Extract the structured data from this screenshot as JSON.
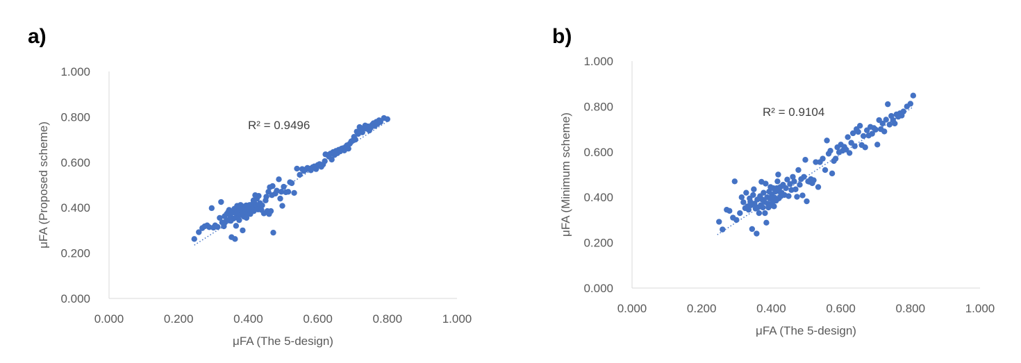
{
  "panels": [
    {
      "label": "a)",
      "chart_data": {
        "type": "scatter",
        "xlabel": "μFA (The 5-design)",
        "ylabel": "μFA (Proposed scheme)",
        "xlim": [
          0,
          1
        ],
        "ylim": [
          0,
          1
        ],
        "xticks": [
          "0.000",
          "0.200",
          "0.400",
          "0.600",
          "0.800",
          "1.000"
        ],
        "yticks": [
          "0.000",
          "0.200",
          "0.400",
          "0.600",
          "0.800",
          "1.000"
        ],
        "annotation": "R² = 0.9496",
        "trendline": [
          [
            0.245,
            0.235
          ],
          [
            0.805,
            0.785
          ]
        ],
        "marker_color": "#4472C4",
        "points": [
          [
            0.245,
            0.262
          ],
          [
            0.258,
            0.292
          ],
          [
            0.268,
            0.31
          ],
          [
            0.275,
            0.318
          ],
          [
            0.282,
            0.322
          ],
          [
            0.288,
            0.314
          ],
          [
            0.295,
            0.398
          ],
          [
            0.3,
            0.312
          ],
          [
            0.305,
            0.322
          ],
          [
            0.312,
            0.315
          ],
          [
            0.318,
            0.355
          ],
          [
            0.322,
            0.425
          ],
          [
            0.325,
            0.335
          ],
          [
            0.33,
            0.318
          ],
          [
            0.332,
            0.362
          ],
          [
            0.335,
            0.338
          ],
          [
            0.338,
            0.372
          ],
          [
            0.34,
            0.345
          ],
          [
            0.342,
            0.38
          ],
          [
            0.345,
            0.39
          ],
          [
            0.348,
            0.365
          ],
          [
            0.35,
            0.342
          ],
          [
            0.352,
            0.27
          ],
          [
            0.355,
            0.378
          ],
          [
            0.358,
            0.352
          ],
          [
            0.36,
            0.395
          ],
          [
            0.362,
            0.262
          ],
          [
            0.365,
            0.32
          ],
          [
            0.366,
            0.372
          ],
          [
            0.368,
            0.408
          ],
          [
            0.37,
            0.355
          ],
          [
            0.372,
            0.385
          ],
          [
            0.374,
            0.345
          ],
          [
            0.376,
            0.398
          ],
          [
            0.378,
            0.412
          ],
          [
            0.38,
            0.368
          ],
          [
            0.382,
            0.392
          ],
          [
            0.384,
            0.3
          ],
          [
            0.385,
            0.378
          ],
          [
            0.386,
            0.405
          ],
          [
            0.388,
            0.36
          ],
          [
            0.39,
            0.395
          ],
          [
            0.392,
            0.382
          ],
          [
            0.394,
            0.41
          ],
          [
            0.395,
            0.355
          ],
          [
            0.396,
            0.392
          ],
          [
            0.398,
            0.375
          ],
          [
            0.4,
            0.4
          ],
          [
            0.402,
            0.388
          ],
          [
            0.404,
            0.412
          ],
          [
            0.405,
            0.395
          ],
          [
            0.406,
            0.372
          ],
          [
            0.408,
            0.408
          ],
          [
            0.41,
            0.39
          ],
          [
            0.412,
            0.415
          ],
          [
            0.414,
            0.4
          ],
          [
            0.415,
            0.432
          ],
          [
            0.416,
            0.385
          ],
          [
            0.418,
            0.42
          ],
          [
            0.42,
            0.455
          ],
          [
            0.422,
            0.398
          ],
          [
            0.424,
            0.41
          ],
          [
            0.425,
            0.44
          ],
          [
            0.426,
            0.405
          ],
          [
            0.428,
            0.392
          ],
          [
            0.43,
            0.452
          ],
          [
            0.432,
            0.415
          ],
          [
            0.434,
            0.42
          ],
          [
            0.436,
            0.405
          ],
          [
            0.438,
            0.39
          ],
          [
            0.44,
            0.41
          ],
          [
            0.445,
            0.375
          ],
          [
            0.45,
            0.432
          ],
          [
            0.452,
            0.448
          ],
          [
            0.455,
            0.385
          ],
          [
            0.458,
            0.47
          ],
          [
            0.46,
            0.372
          ],
          [
            0.462,
            0.49
          ],
          [
            0.465,
            0.385
          ],
          [
            0.468,
            0.455
          ],
          [
            0.47,
            0.495
          ],
          [
            0.472,
            0.29
          ],
          [
            0.478,
            0.462
          ],
          [
            0.482,
            0.475
          ],
          [
            0.488,
            0.525
          ],
          [
            0.492,
            0.44
          ],
          [
            0.495,
            0.47
          ],
          [
            0.498,
            0.408
          ],
          [
            0.502,
            0.492
          ],
          [
            0.508,
            0.468
          ],
          [
            0.515,
            0.47
          ],
          [
            0.52,
            0.512
          ],
          [
            0.525,
            0.508
          ],
          [
            0.532,
            0.465
          ],
          [
            0.54,
            0.572
          ],
          [
            0.548,
            0.545
          ],
          [
            0.555,
            0.57
          ],
          [
            0.56,
            0.562
          ],
          [
            0.565,
            0.568
          ],
          [
            0.57,
            0.575
          ],
          [
            0.575,
            0.572
          ],
          [
            0.58,
            0.565
          ],
          [
            0.585,
            0.578
          ],
          [
            0.59,
            0.582
          ],
          [
            0.595,
            0.57
          ],
          [
            0.6,
            0.588
          ],
          [
            0.605,
            0.592
          ],
          [
            0.61,
            0.58
          ],
          [
            0.615,
            0.59
          ],
          [
            0.62,
            0.605
          ],
          [
            0.622,
            0.635
          ],
          [
            0.628,
            0.632
          ],
          [
            0.632,
            0.625
          ],
          [
            0.636,
            0.638
          ],
          [
            0.64,
            0.612
          ],
          [
            0.644,
            0.645
          ],
          [
            0.648,
            0.632
          ],
          [
            0.652,
            0.65
          ],
          [
            0.656,
            0.64
          ],
          [
            0.66,
            0.655
          ],
          [
            0.664,
            0.648
          ],
          [
            0.668,
            0.66
          ],
          [
            0.672,
            0.662
          ],
          [
            0.676,
            0.652
          ],
          [
            0.68,
            0.668
          ],
          [
            0.684,
            0.675
          ],
          [
            0.688,
            0.66
          ],
          [
            0.692,
            0.682
          ],
          [
            0.696,
            0.692
          ],
          [
            0.7,
            0.695
          ],
          [
            0.704,
            0.712
          ],
          [
            0.708,
            0.7
          ],
          [
            0.712,
            0.735
          ],
          [
            0.716,
            0.725
          ],
          [
            0.72,
            0.755
          ],
          [
            0.724,
            0.742
          ],
          [
            0.728,
            0.732
          ],
          [
            0.732,
            0.752
          ],
          [
            0.736,
            0.762
          ],
          [
            0.74,
            0.748
          ],
          [
            0.744,
            0.758
          ],
          [
            0.748,
            0.74
          ],
          [
            0.752,
            0.752
          ],
          [
            0.756,
            0.765
          ],
          [
            0.76,
            0.772
          ],
          [
            0.764,
            0.76
          ],
          [
            0.768,
            0.778
          ],
          [
            0.772,
            0.77
          ],
          [
            0.776,
            0.785
          ],
          [
            0.78,
            0.778
          ],
          [
            0.79,
            0.795
          ],
          [
            0.8,
            0.79
          ]
        ]
      }
    },
    {
      "label": "b)",
      "chart_data": {
        "type": "scatter",
        "xlabel": "μFA (The 5-design)",
        "ylabel": "μFA (Minimum scheme)",
        "xlim": [
          0,
          1
        ],
        "ylim": [
          0,
          1
        ],
        "xticks": [
          "0.000",
          "0.200",
          "0.400",
          "0.600",
          "0.800",
          "1.000"
        ],
        "yticks": [
          "0.000",
          "0.200",
          "0.400",
          "0.600",
          "0.800",
          "1.000"
        ],
        "annotation": "R² = 0.9104",
        "trendline": [
          [
            0.245,
            0.235
          ],
          [
            0.805,
            0.795
          ]
        ],
        "marker_color": "#4472C4",
        "points": [
          [
            0.25,
            0.292
          ],
          [
            0.26,
            0.258
          ],
          [
            0.272,
            0.345
          ],
          [
            0.28,
            0.34
          ],
          [
            0.29,
            0.31
          ],
          [
            0.295,
            0.47
          ],
          [
            0.3,
            0.3
          ],
          [
            0.31,
            0.33
          ],
          [
            0.315,
            0.4
          ],
          [
            0.32,
            0.378
          ],
          [
            0.325,
            0.352
          ],
          [
            0.328,
            0.42
          ],
          [
            0.332,
            0.36
          ],
          [
            0.335,
            0.345
          ],
          [
            0.338,
            0.395
          ],
          [
            0.34,
            0.38
          ],
          [
            0.342,
            0.365
          ],
          [
            0.345,
            0.26
          ],
          [
            0.348,
            0.41
          ],
          [
            0.35,
            0.435
          ],
          [
            0.352,
            0.372
          ],
          [
            0.355,
            0.35
          ],
          [
            0.358,
            0.24
          ],
          [
            0.36,
            0.39
          ],
          [
            0.362,
            0.355
          ],
          [
            0.365,
            0.33
          ],
          [
            0.368,
            0.405
          ],
          [
            0.37,
            0.365
          ],
          [
            0.372,
            0.468
          ],
          [
            0.374,
            0.39
          ],
          [
            0.376,
            0.355
          ],
          [
            0.378,
            0.42
          ],
          [
            0.38,
            0.38
          ],
          [
            0.382,
            0.33
          ],
          [
            0.384,
            0.46
          ],
          [
            0.386,
            0.288
          ],
          [
            0.388,
            0.4
          ],
          [
            0.39,
            0.372
          ],
          [
            0.392,
            0.355
          ],
          [
            0.394,
            0.425
          ],
          [
            0.396,
            0.395
          ],
          [
            0.398,
            0.445
          ],
          [
            0.4,
            0.365
          ],
          [
            0.402,
            0.412
          ],
          [
            0.404,
            0.38
          ],
          [
            0.406,
            0.44
          ],
          [
            0.408,
            0.36
          ],
          [
            0.41,
            0.398
          ],
          [
            0.412,
            0.425
          ],
          [
            0.414,
            0.385
          ],
          [
            0.416,
            0.44
          ],
          [
            0.418,
            0.47
          ],
          [
            0.42,
            0.5
          ],
          [
            0.422,
            0.395
          ],
          [
            0.424,
            0.425
          ],
          [
            0.426,
            0.445
          ],
          [
            0.428,
            0.405
          ],
          [
            0.43,
            0.42
          ],
          [
            0.434,
            0.455
          ],
          [
            0.438,
            0.41
          ],
          [
            0.442,
            0.44
          ],
          [
            0.446,
            0.478
          ],
          [
            0.45,
            0.405
          ],
          [
            0.454,
            0.458
          ],
          [
            0.458,
            0.432
          ],
          [
            0.462,
            0.49
          ],
          [
            0.466,
            0.47
          ],
          [
            0.47,
            0.435
          ],
          [
            0.474,
            0.402
          ],
          [
            0.478,
            0.52
          ],
          [
            0.482,
            0.455
          ],
          [
            0.486,
            0.48
          ],
          [
            0.49,
            0.408
          ],
          [
            0.494,
            0.49
          ],
          [
            0.498,
            0.565
          ],
          [
            0.502,
            0.382
          ],
          [
            0.506,
            0.47
          ],
          [
            0.51,
            0.468
          ],
          [
            0.514,
            0.48
          ],
          [
            0.518,
            0.462
          ],
          [
            0.522,
            0.475
          ],
          [
            0.528,
            0.555
          ],
          [
            0.535,
            0.445
          ],
          [
            0.54,
            0.555
          ],
          [
            0.548,
            0.57
          ],
          [
            0.555,
            0.52
          ],
          [
            0.56,
            0.65
          ],
          [
            0.565,
            0.592
          ],
          [
            0.57,
            0.605
          ],
          [
            0.575,
            0.505
          ],
          [
            0.58,
            0.56
          ],
          [
            0.585,
            0.57
          ],
          [
            0.59,
            0.62
          ],
          [
            0.595,
            0.598
          ],
          [
            0.6,
            0.632
          ],
          [
            0.605,
            0.605
          ],
          [
            0.61,
            0.622
          ],
          [
            0.615,
            0.61
          ],
          [
            0.62,
            0.665
          ],
          [
            0.625,
            0.595
          ],
          [
            0.63,
            0.64
          ],
          [
            0.635,
            0.682
          ],
          [
            0.64,
            0.625
          ],
          [
            0.645,
            0.7
          ],
          [
            0.65,
            0.688
          ],
          [
            0.655,
            0.715
          ],
          [
            0.66,
            0.63
          ],
          [
            0.665,
            0.67
          ],
          [
            0.67,
            0.62
          ],
          [
            0.675,
            0.695
          ],
          [
            0.68,
            0.672
          ],
          [
            0.685,
            0.71
          ],
          [
            0.69,
            0.68
          ],
          [
            0.695,
            0.705
          ],
          [
            0.7,
            0.698
          ],
          [
            0.705,
            0.632
          ],
          [
            0.71,
            0.74
          ],
          [
            0.715,
            0.7
          ],
          [
            0.72,
            0.725
          ],
          [
            0.725,
            0.69
          ],
          [
            0.73,
            0.742
          ],
          [
            0.735,
            0.81
          ],
          [
            0.74,
            0.72
          ],
          [
            0.745,
            0.758
          ],
          [
            0.75,
            0.74
          ],
          [
            0.755,
            0.725
          ],
          [
            0.76,
            0.765
          ],
          [
            0.765,
            0.755
          ],
          [
            0.77,
            0.77
          ],
          [
            0.775,
            0.76
          ],
          [
            0.78,
            0.778
          ],
          [
            0.79,
            0.8
          ],
          [
            0.8,
            0.812
          ],
          [
            0.808,
            0.848
          ]
        ]
      }
    }
  ]
}
